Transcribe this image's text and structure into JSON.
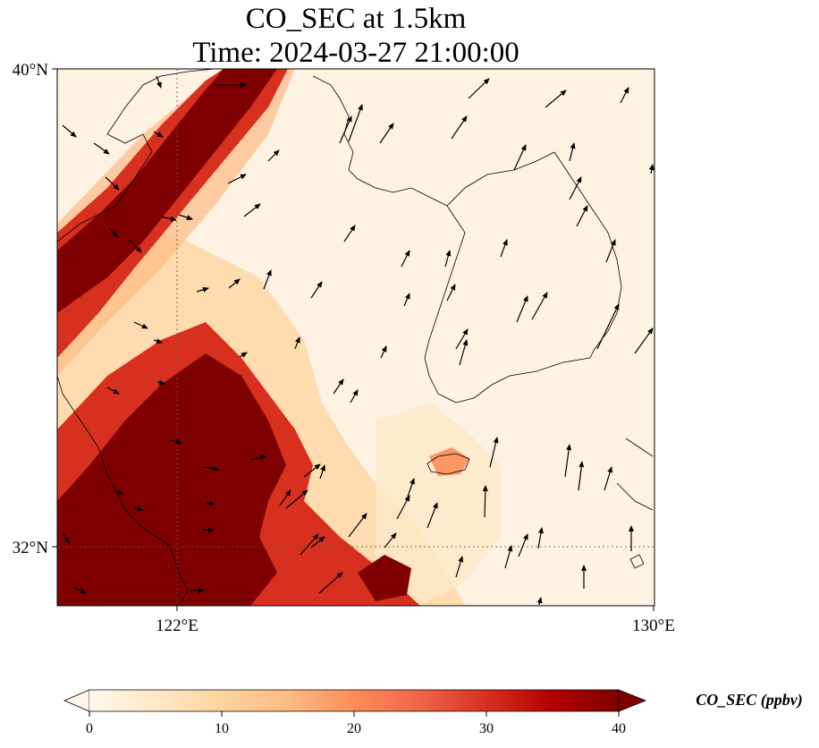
{
  "title_line1": "CO_SEC at 1.5km",
  "title_line2": "Time: 2024-03-27 21:00:00",
  "map": {
    "extent": {
      "lon_min": 120,
      "lon_max": 130,
      "lat_min": 31,
      "lat_max": 40
    },
    "lat_ticks": [
      {
        "value": 40,
        "label": "40°N"
      },
      {
        "value": 32,
        "label": "32°N"
      }
    ],
    "lon_ticks": [
      {
        "value": 122,
        "label": "122°E"
      },
      {
        "value": 130,
        "label": "130°E"
      }
    ],
    "gridlines": "dotted"
  },
  "colorbar": {
    "title": "CO_SEC (ppbv)",
    "colormap": "OrRd",
    "min": 0,
    "max": 40,
    "extend": "both",
    "ticks": [
      0,
      10,
      20,
      30,
      40
    ],
    "colors": [
      "#fff7ec",
      "#fee8c8",
      "#fdd49e",
      "#fdbb84",
      "#fc8d59",
      "#ef6548",
      "#d7301f",
      "#b30000",
      "#7f0000"
    ]
  },
  "arrow_color": "#000000"
}
